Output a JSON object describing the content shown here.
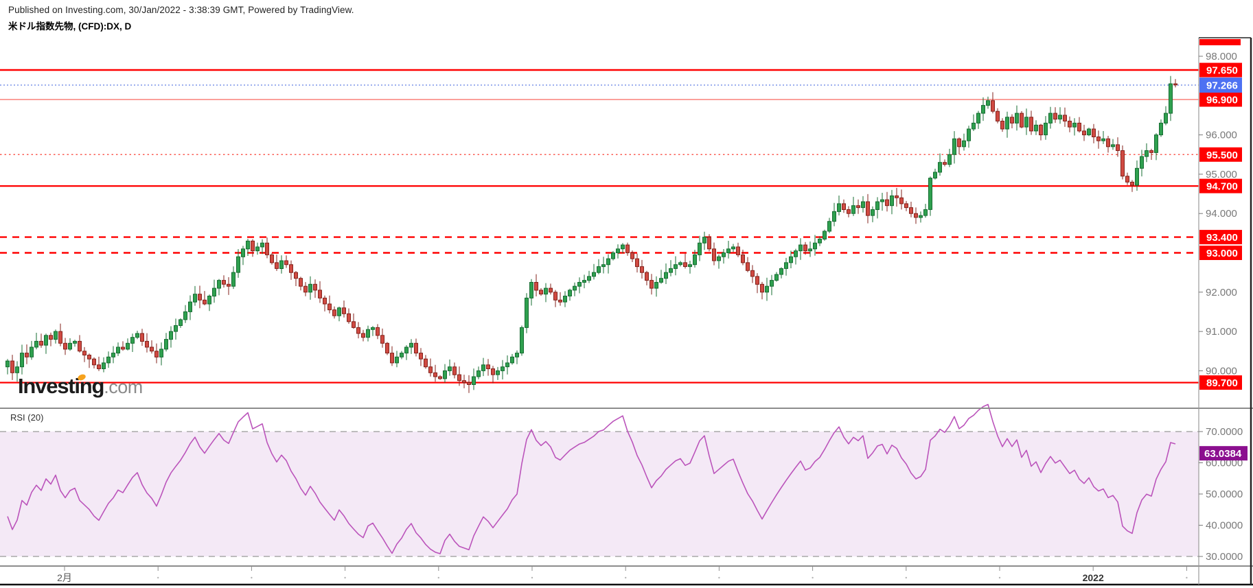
{
  "header": {
    "published_line": "Published on Investing.com, 30/Jan/2022 - 3:38:39 GMT, Powered by TradingView.",
    "instrument_title": "米ドル指数先物, (CFD):DX, D"
  },
  "logo": {
    "investing": "Investing",
    "dotcom": ".com"
  },
  "rsi_panel": {
    "title": "RSI (20)",
    "period": 20,
    "value": 63.0384,
    "value_label": "63.0384",
    "band": [
      30,
      70
    ],
    "ticks": [
      {
        "label": "70.0000",
        "value": 70
      },
      {
        "label": "60.0000",
        "value": 60
      },
      {
        "label": "50.0000",
        "value": 50
      },
      {
        "label": "40.0000",
        "value": 40
      },
      {
        "label": "30.0000",
        "value": 30
      }
    ],
    "line_color": "#bb54bb",
    "band_fill": "#f4e9f6",
    "label_bg": "#8b0f8f"
  },
  "price_axis": {
    "ticks": [
      {
        "label": "98.000",
        "value": 98
      },
      {
        "label": "96.000",
        "value": 96
      },
      {
        "label": "95.000",
        "value": 95
      },
      {
        "label": "94.000",
        "value": 94
      },
      {
        "label": "92.000",
        "value": 92
      },
      {
        "label": "91.000",
        "value": 91
      },
      {
        "label": "90.000",
        "value": 90
      }
    ]
  },
  "current_price": {
    "label": "97.266",
    "value": 97.266,
    "line_color": "#7b93e8",
    "label_bg": "#4d71f2"
  },
  "levels": [
    {
      "label": "97.650",
      "value": 97.65,
      "style": "solid",
      "weight": 2.5,
      "color": "#ff0000"
    },
    {
      "label": "96.900",
      "value": 96.9,
      "style": "thin",
      "weight": 1.4,
      "color": "#fa756d"
    },
    {
      "label": "95.500",
      "value": 95.5,
      "style": "dotted",
      "weight": 1.6,
      "color": "#fa5b52"
    },
    {
      "label": "94.700",
      "value": 94.7,
      "style": "solid",
      "weight": 2.2,
      "color": "#ff0000"
    },
    {
      "label": "93.400",
      "value": 93.4,
      "style": "dashed",
      "weight": 2.4,
      "color": "#ff0000"
    },
    {
      "label": "93.000",
      "value": 93.0,
      "style": "dashed",
      "weight": 2.4,
      "color": "#ff0000"
    },
    {
      "label": "89.700",
      "value": 89.7,
      "style": "solid",
      "weight": 2.2,
      "color": "#ff0000"
    }
  ],
  "time_axis": {
    "month_tick_count": 13,
    "labels": [
      {
        "text": "2月",
        "index": 0,
        "bold": false
      },
      {
        "text": "2022",
        "index": 11,
        "bold": true
      }
    ]
  },
  "colors": {
    "up_fill": "#2fa04f",
    "up_stroke": "#156c31",
    "down_fill": "#d04a42",
    "down_stroke": "#83221b",
    "separator": "#8c8c8c",
    "axis_text": "#787878"
  },
  "chart_data": {
    "type": "candlestick",
    "symbol": "DX",
    "interval": "D",
    "visible_price_range": [
      89.4,
      98.45
    ],
    "rsi_axis_range": [
      30,
      70
    ],
    "closes": [
      90.25,
      89.95,
      90.1,
      90.45,
      90.35,
      90.6,
      90.75,
      90.65,
      90.9,
      90.8,
      91.0,
      90.7,
      90.55,
      90.7,
      90.75,
      90.5,
      90.4,
      90.3,
      90.15,
      90.05,
      90.2,
      90.35,
      90.45,
      90.6,
      90.55,
      90.7,
      90.85,
      90.95,
      90.75,
      90.6,
      90.5,
      90.35,
      90.55,
      90.8,
      91.0,
      91.15,
      91.3,
      91.5,
      91.75,
      91.95,
      91.8,
      91.7,
      91.9,
      92.1,
      92.3,
      92.2,
      92.15,
      92.5,
      92.9,
      93.1,
      93.3,
      93.05,
      93.15,
      93.25,
      92.95,
      92.75,
      92.6,
      92.8,
      92.7,
      92.5,
      92.35,
      92.15,
      92.0,
      92.2,
      92.05,
      91.85,
      91.7,
      91.55,
      91.4,
      91.6,
      91.45,
      91.25,
      91.1,
      90.95,
      90.85,
      91.05,
      91.1,
      90.9,
      90.7,
      90.45,
      90.2,
      90.35,
      90.45,
      90.6,
      90.7,
      90.45,
      90.3,
      90.1,
      89.95,
      89.85,
      89.8,
      90.0,
      90.1,
      89.9,
      89.75,
      89.7,
      89.65,
      89.85,
      90.0,
      90.15,
      90.05,
      89.9,
      90.0,
      90.1,
      90.2,
      90.35,
      90.45,
      91.1,
      91.85,
      92.25,
      92.05,
      91.95,
      92.1,
      92.0,
      91.8,
      91.75,
      91.9,
      92.05,
      92.15,
      92.25,
      92.3,
      92.4,
      92.5,
      92.65,
      92.7,
      92.85,
      93.0,
      93.1,
      93.2,
      93.0,
      92.85,
      92.65,
      92.5,
      92.3,
      92.1,
      92.25,
      92.35,
      92.5,
      92.6,
      92.7,
      92.75,
      92.65,
      92.7,
      92.95,
      93.25,
      93.4,
      93.1,
      92.8,
      92.9,
      93.0,
      93.1,
      93.15,
      92.95,
      92.75,
      92.55,
      92.4,
      92.2,
      92.0,
      92.15,
      92.3,
      92.45,
      92.6,
      92.75,
      92.9,
      93.05,
      93.2,
      93.05,
      93.1,
      93.25,
      93.35,
      93.55,
      93.8,
      94.05,
      94.25,
      94.1,
      94.0,
      94.2,
      94.15,
      94.3,
      93.95,
      94.1,
      94.3,
      94.35,
      94.2,
      94.45,
      94.4,
      94.25,
      94.15,
      94.0,
      93.9,
      93.95,
      94.1,
      94.9,
      95.05,
      95.3,
      95.25,
      95.5,
      95.9,
      95.7,
      95.85,
      96.15,
      96.3,
      96.55,
      96.75,
      96.87,
      96.6,
      96.35,
      96.15,
      96.45,
      96.3,
      96.55,
      96.2,
      96.45,
      96.1,
      96.25,
      96.0,
      96.3,
      96.55,
      96.4,
      96.5,
      96.35,
      96.2,
      96.3,
      96.1,
      96.0,
      96.15,
      95.95,
      95.85,
      95.9,
      95.7,
      95.75,
      95.6,
      94.95,
      94.8,
      94.72,
      95.15,
      95.45,
      95.6,
      95.55,
      96.0,
      96.3,
      96.55,
      97.3,
      97.27
    ],
    "pre_closes": [
      90.9,
      90.7,
      90.8,
      90.5,
      90.3,
      90.4,
      90.2,
      90.0,
      89.9,
      90.1,
      90.2,
      90.0,
      89.85,
      89.95,
      90.1,
      90.3,
      90.2,
      90.4,
      90.5,
      90.3,
      90.2,
      90.35,
      90.5,
      90.4,
      90.6,
      90.45,
      90.3,
      90.2,
      90.15,
      90.1
    ]
  }
}
